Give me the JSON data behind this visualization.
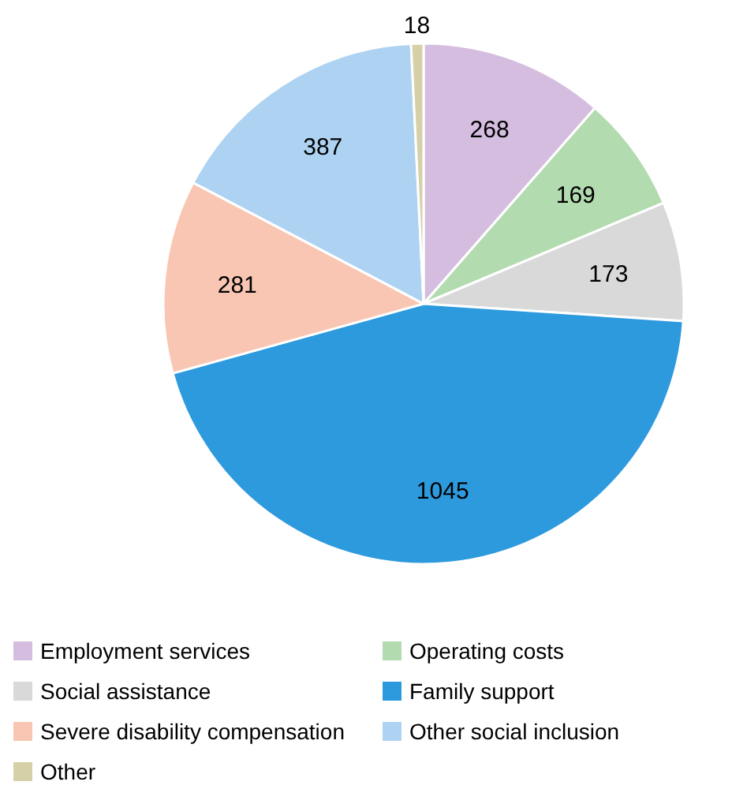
{
  "chart_data": {
    "type": "pie",
    "categories": [
      "Employment services",
      "Operating costs",
      "Social assistance",
      "Family support",
      "Severe disability compensation",
      "Other social inclusion",
      "Other"
    ],
    "values": [
      268,
      169,
      173,
      1045,
      281,
      387,
      18
    ],
    "colors": [
      "#d5bde0",
      "#b3dbb0",
      "#d9d9d9",
      "#2e9ade",
      "#f9c6b4",
      "#aed3f2",
      "#d6d0a8"
    ],
    "data_labels": true,
    "legend": "bottom"
  }
}
